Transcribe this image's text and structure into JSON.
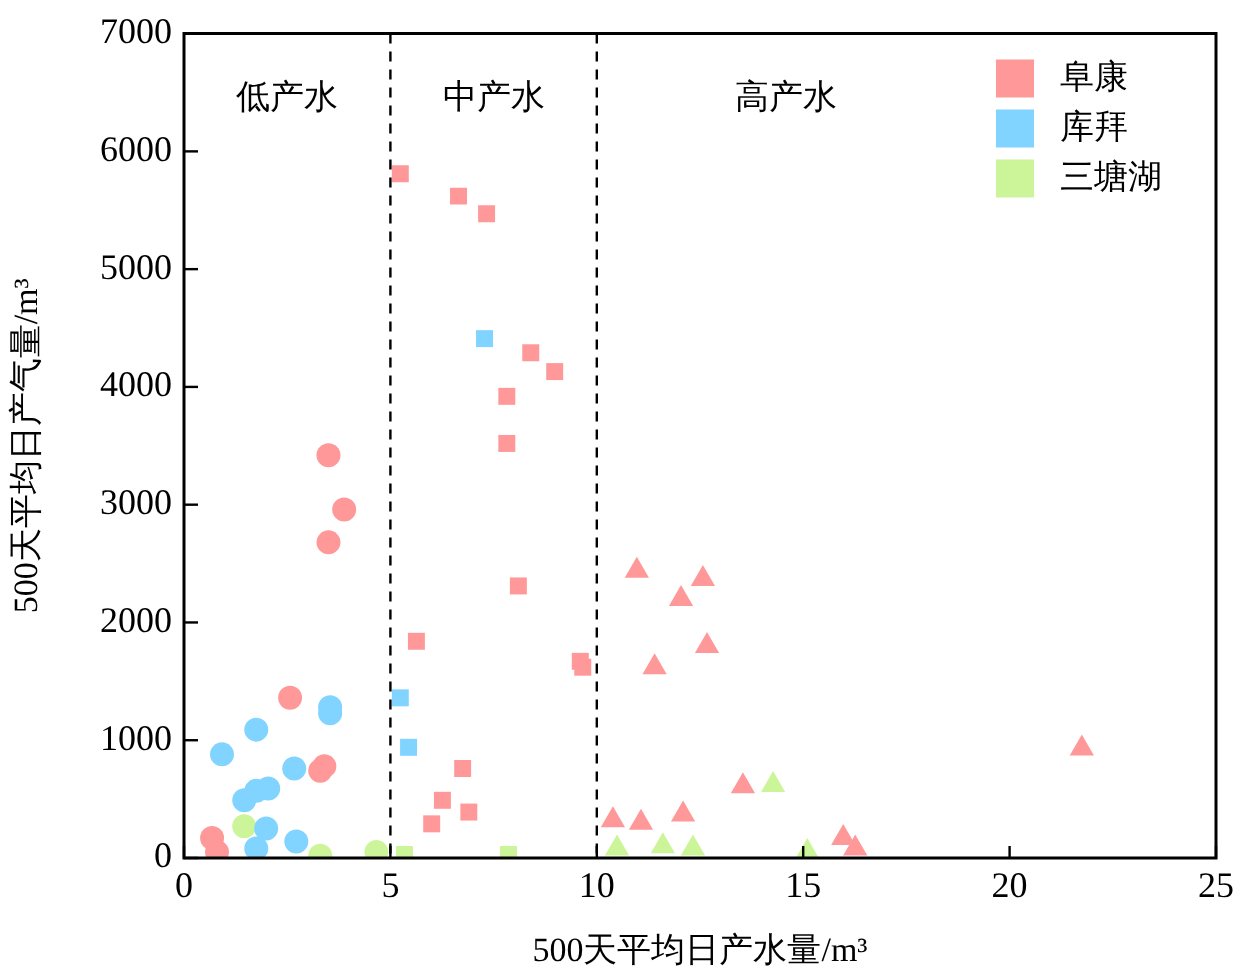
{
  "chart_data": {
    "type": "scatter",
    "xlabel": "500天平均日产水量/m³",
    "ylabel": "500天平均日产气量/m³",
    "xlim": [
      0,
      25
    ],
    "xticks": [
      0,
      5,
      10,
      15,
      20,
      25
    ],
    "ylim": [
      0,
      7000
    ],
    "yticks": [
      0,
      1000,
      2000,
      3000,
      4000,
      5000,
      6000,
      7000
    ],
    "grid": false,
    "legend": "top right",
    "ref_lines": [
      {
        "axis": "x",
        "value": 5,
        "line_style": "dashed",
        "color": "#000000"
      },
      {
        "axis": "x",
        "value": 10,
        "line_style": "dashed",
        "color": "#000000"
      }
    ],
    "annotations": [
      "低产水",
      "中产水",
      "高产水"
    ],
    "series": [
      {
        "name": "阜康",
        "color": "#ff9999",
        "marker": "square",
        "x": [
          5.24,
          6.65,
          7.33,
          8.4,
          8.98,
          7.82,
          7.82,
          8.1,
          5.63,
          9.6,
          9.66,
          6.75,
          6.26,
          6.9,
          6.0
        ],
        "values": [
          5810,
          5620,
          5470,
          4290,
          4130,
          3920,
          3520,
          2310,
          1840,
          1670,
          1620,
          760,
          490,
          390,
          290
        ]
      },
      {
        "name": "库拜",
        "color": "#80d4ff",
        "marker": "square",
        "x": [
          7.28,
          5.24,
          5.44
        ],
        "values": [
          4410,
          1360,
          940
        ]
      },
      {
        "name": "三塘湖",
        "color": "#ccf599",
        "marker": "square",
        "x": [
          5.34,
          7.86
        ],
        "values": [
          30,
          30
        ]
      },
      {
        "color": "#ff9999",
        "marker": "circle",
        "x": [
          0.68,
          0.8,
          2.57,
          3.3,
          3.4,
          3.5,
          3.88,
          3.5
        ],
        "values": [
          170,
          50,
          1360,
          740,
          780,
          3420,
          2960,
          2680
        ]
      },
      {
        "color": "#80d4ff",
        "marker": "circle",
        "x": [
          1.75,
          0.92,
          3.54,
          3.54,
          2.67,
          1.46,
          1.75,
          2.04,
          1.99,
          2.72,
          1.75
        ],
        "values": [
          1090,
          880,
          1280,
          1230,
          760,
          490,
          570,
          590,
          250,
          140,
          80
        ]
      },
      {
        "color": "#ccf599",
        "marker": "circle",
        "x": [
          1.46,
          3.3,
          4.66
        ],
        "values": [
          270,
          20,
          50
        ]
      },
      {
        "color": "#ff9999",
        "marker": "triangle",
        "x": [
          10.97,
          12.57,
          12.04,
          12.67,
          11.4,
          10.39,
          11.07,
          12.09,
          13.54,
          15.97,
          16.26,
          21.75
        ],
        "values": [
          2440,
          2370,
          2200,
          1800,
          1620,
          320,
          300,
          370,
          610,
          170,
          80,
          930
        ]
      },
      {
        "color": "#ccf599",
        "marker": "triangle",
        "x": [
          14.27,
          10.49,
          11.6,
          12.33,
          15.1
        ],
        "values": [
          620,
          80,
          100,
          80,
          50
        ]
      }
    ]
  }
}
